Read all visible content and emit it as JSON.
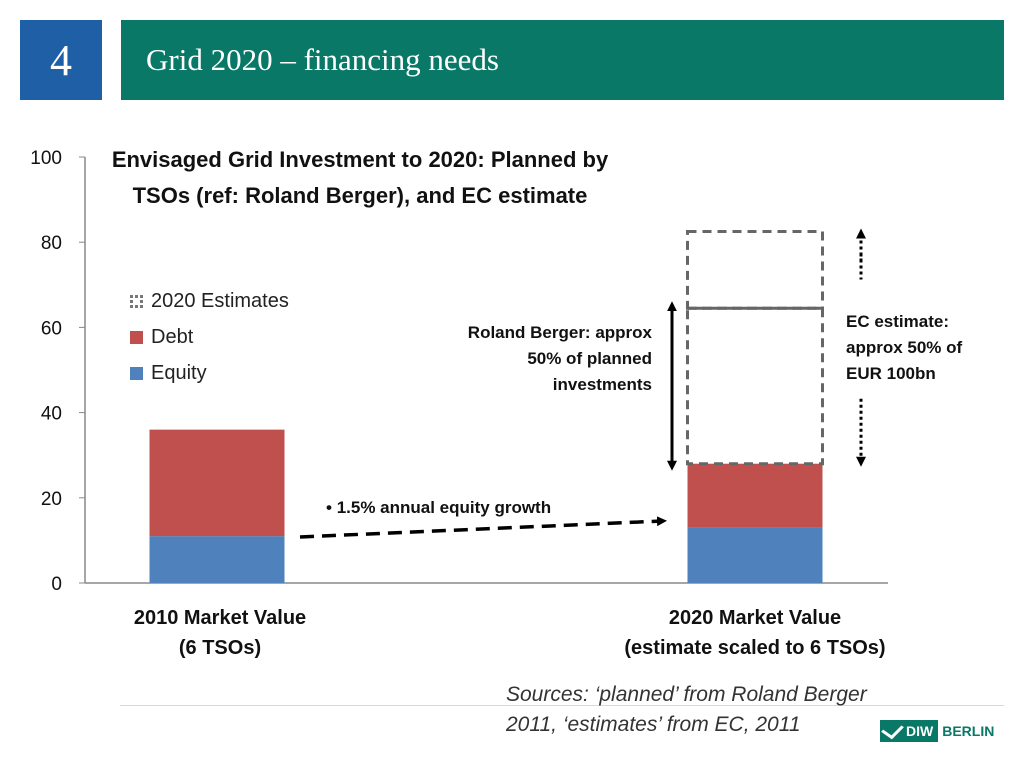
{
  "slide": {
    "number": "4",
    "title": "Grid 2020 – financing needs"
  },
  "chart_data": {
    "type": "bar",
    "stacked": true,
    "title": "Envisaged Grid Investment to 2020: Planned by TSOs (ref: Roland Berger), and EC estimate",
    "categories": [
      "2010 Market Value (6 TSOs)",
      "2020 Market Value (estimate scaled to 6 TSOs)"
    ],
    "category_lines": [
      [
        "2010 Market Value",
        "(6 TSOs)"
      ],
      [
        "2020 Market Value",
        "(estimate scaled to 6 TSOs)"
      ]
    ],
    "series": [
      {
        "name": "Equity",
        "values": [
          11,
          13
        ],
        "color": "#4f81bd"
      },
      {
        "name": "Debt",
        "values": [
          25,
          15
        ],
        "color": "#c0504d"
      },
      {
        "name": "2020 Estimates",
        "values": [
          0,
          36.5
        ],
        "style": "dashed-outline",
        "divider_at": 64.5
      },
      {
        "name": "",
        "values": [
          0,
          18
        ],
        "style": "dashed-outline"
      }
    ],
    "legend_order": [
      "2020 Estimates",
      "Debt",
      "Equity"
    ],
    "legend_position": "left",
    "ylim": [
      0,
      100
    ],
    "yticks": [
      0,
      20,
      40,
      60,
      80,
      100
    ],
    "xlabel": "",
    "ylabel": "",
    "annotations": {
      "roland_berger": [
        "Roland Berger: approx",
        "50% of planned",
        "investments"
      ],
      "ec_estimate": [
        "EC estimate:",
        "approx 50% of",
        "EUR 100bn"
      ],
      "growth": "1.5% annual equity growth"
    }
  },
  "sources": [
    "Sources: ‘planned’ from Roland Berger",
    "2011, ‘estimates’ from EC, 2011"
  ],
  "logo": {
    "mark": "DIW",
    "text": "BERLIN"
  }
}
